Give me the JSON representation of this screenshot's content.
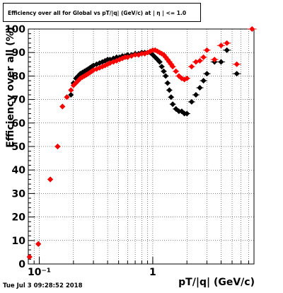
{
  "chart_data": {
    "type": "scatter",
    "title": "Efficiency over all for Global vs pT/|q| (GeV/c) at | η | <= 1.0",
    "xlabel": "pT/|q| (GeV/c)",
    "ylabel": "Efficiency over all (%)",
    "timestamp": "Tue Jul  3 09:28:52 2018",
    "x_scale": "log",
    "xlim": [
      0.08,
      7.8
    ],
    "ylim": [
      0,
      100
    ],
    "grid": true,
    "x_ticks": [
      {
        "value": 0.1,
        "label": "10⁻¹"
      },
      {
        "value": 1,
        "label": "1"
      }
    ],
    "y_ticks": [
      0,
      10,
      20,
      30,
      40,
      50,
      60,
      70,
      80,
      90,
      100
    ],
    "series": [
      {
        "color": "#000000",
        "marker": "diamond",
        "points": [
          [
            0.082,
            3
          ],
          [
            0.098,
            8.5
          ],
          [
            0.125,
            36
          ],
          [
            0.145,
            50
          ],
          [
            0.16,
            67
          ],
          [
            0.175,
            71
          ],
          [
            0.19,
            72
          ],
          [
            0.2,
            77
          ],
          [
            0.21,
            79
          ],
          [
            0.22,
            80
          ],
          [
            0.23,
            81
          ],
          [
            0.24,
            81.5
          ],
          [
            0.25,
            82
          ],
          [
            0.26,
            82.5
          ],
          [
            0.27,
            83
          ],
          [
            0.28,
            83.5
          ],
          [
            0.29,
            84
          ],
          [
            0.3,
            84.5
          ],
          [
            0.32,
            85
          ],
          [
            0.34,
            85.5
          ],
          [
            0.36,
            86
          ],
          [
            0.38,
            86.5
          ],
          [
            0.4,
            87
          ],
          [
            0.42,
            87
          ],
          [
            0.45,
            87.5
          ],
          [
            0.48,
            88
          ],
          [
            0.51,
            88
          ],
          [
            0.54,
            88.5
          ],
          [
            0.57,
            88.5
          ],
          [
            0.6,
            89
          ],
          [
            0.65,
            89
          ],
          [
            0.7,
            89.5
          ],
          [
            0.75,
            89.5
          ],
          [
            0.8,
            90
          ],
          [
            0.85,
            90
          ],
          [
            0.9,
            90
          ],
          [
            0.95,
            90
          ],
          [
            1.0,
            89
          ],
          [
            1.05,
            88
          ],
          [
            1.1,
            87
          ],
          [
            1.15,
            86
          ],
          [
            1.2,
            84
          ],
          [
            1.25,
            82
          ],
          [
            1.3,
            80
          ],
          [
            1.35,
            77
          ],
          [
            1.4,
            74
          ],
          [
            1.45,
            71
          ],
          [
            1.5,
            68
          ],
          [
            1.6,
            66
          ],
          [
            1.7,
            65
          ],
          [
            1.8,
            65
          ],
          [
            1.9,
            64
          ],
          [
            2.0,
            64
          ],
          [
            2.2,
            69
          ],
          [
            2.4,
            72
          ],
          [
            2.6,
            75
          ],
          [
            2.8,
            78
          ],
          [
            3.0,
            81
          ],
          [
            3.5,
            86
          ],
          [
            4.0,
            86
          ],
          [
            4.5,
            91
          ],
          [
            5.5,
            81
          ]
        ]
      },
      {
        "color": "#ff0000",
        "marker": "diamond",
        "points": [
          [
            0.082,
            3
          ],
          [
            0.098,
            8.5
          ],
          [
            0.125,
            36
          ],
          [
            0.145,
            50
          ],
          [
            0.16,
            67
          ],
          [
            0.175,
            71
          ],
          [
            0.19,
            74
          ],
          [
            0.2,
            76
          ],
          [
            0.21,
            77
          ],
          [
            0.22,
            78
          ],
          [
            0.23,
            79
          ],
          [
            0.24,
            79.5
          ],
          [
            0.25,
            80
          ],
          [
            0.26,
            80.5
          ],
          [
            0.27,
            81
          ],
          [
            0.28,
            81.5
          ],
          [
            0.29,
            82
          ],
          [
            0.3,
            82.5
          ],
          [
            0.32,
            83
          ],
          [
            0.34,
            83.5
          ],
          [
            0.36,
            84
          ],
          [
            0.38,
            84.5
          ],
          [
            0.4,
            85
          ],
          [
            0.42,
            85.5
          ],
          [
            0.45,
            86
          ],
          [
            0.48,
            86.5
          ],
          [
            0.51,
            87
          ],
          [
            0.54,
            87.5
          ],
          [
            0.57,
            88
          ],
          [
            0.6,
            88
          ],
          [
            0.65,
            88.5
          ],
          [
            0.7,
            89
          ],
          [
            0.75,
            89
          ],
          [
            0.8,
            89.5
          ],
          [
            0.85,
            89.5
          ],
          [
            0.9,
            90
          ],
          [
            0.95,
            90.5
          ],
          [
            1.0,
            91
          ],
          [
            1.05,
            91
          ],
          [
            1.1,
            90.5
          ],
          [
            1.15,
            90
          ],
          [
            1.2,
            89.5
          ],
          [
            1.25,
            89
          ],
          [
            1.3,
            88
          ],
          [
            1.35,
            87
          ],
          [
            1.4,
            86
          ],
          [
            1.45,
            85
          ],
          [
            1.5,
            84
          ],
          [
            1.6,
            82
          ],
          [
            1.7,
            80
          ],
          [
            1.8,
            79
          ],
          [
            1.9,
            78.5
          ],
          [
            2.0,
            79
          ],
          [
            2.2,
            84
          ],
          [
            2.4,
            86
          ],
          [
            2.6,
            86.5
          ],
          [
            2.8,
            88
          ],
          [
            3.0,
            91
          ],
          [
            3.5,
            87
          ],
          [
            4.0,
            93
          ],
          [
            4.5,
            94
          ],
          [
            5.5,
            85
          ],
          [
            7.5,
            100
          ]
        ]
      }
    ]
  }
}
